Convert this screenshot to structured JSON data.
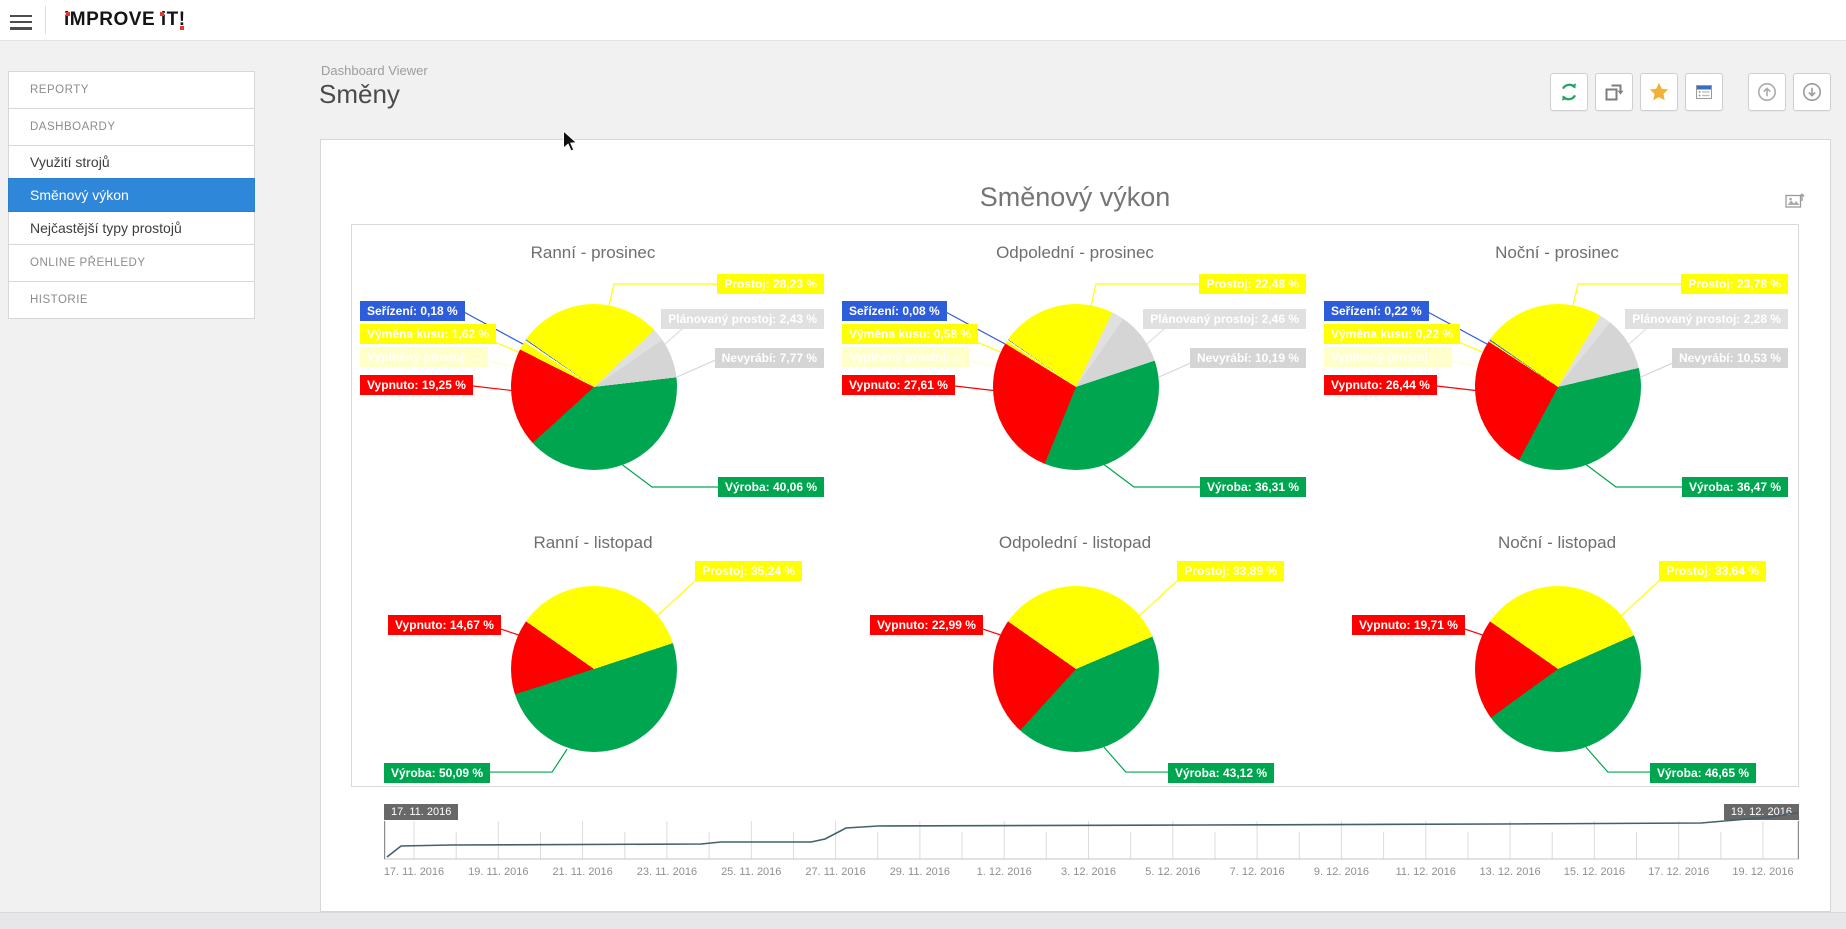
{
  "topbar": {
    "brand": "iMPROVE iT!"
  },
  "sidebar": {
    "items": [
      {
        "label": "REPORTY",
        "type": "section",
        "selected": false
      },
      {
        "label": "DASHBOARDY",
        "type": "section",
        "selected": false
      },
      {
        "label": "Využití strojů",
        "type": "item",
        "selected": false
      },
      {
        "label": "Směnový výkon",
        "type": "item",
        "selected": true
      },
      {
        "label": "Nejčastější typy prostojů",
        "type": "item",
        "selected": false
      },
      {
        "label": "ONLINE PŘEHLEDY",
        "type": "section",
        "selected": false
      },
      {
        "label": "HISTORIE",
        "type": "section",
        "selected": false
      }
    ]
  },
  "header": {
    "breadcrumb": "Dashboard Viewer",
    "title": "Směny"
  },
  "toolbar": {
    "buttons": [
      {
        "icon": "refresh",
        "color": "#23a566"
      },
      {
        "icon": "export",
        "color": "#7d7d7d"
      },
      {
        "icon": "favorite",
        "color": "#f2b138"
      },
      {
        "icon": "parameters",
        "color": "#3a70b8"
      },
      {
        "icon": "arrow-up-circle",
        "color": "#ababab"
      },
      {
        "icon": "arrow-down-circle",
        "color": "#9b9b9b"
      }
    ]
  },
  "dashboard": {
    "title": "Směnový výkon"
  },
  "colors": {
    "prostoj": "#ffff00",
    "planovany_prostoj": "#e0e0e0",
    "nevyrabi": "#d5d5d5",
    "vyroba": "#00a64f",
    "vypnuto": "#fe0000",
    "serizeni": "#2e5ddb",
    "vymena_kusu": "#ffff00",
    "vyplneny_prostoj": "#ffffca",
    "selected_nav": "#2e87d9",
    "timeline_line": "#43606b"
  },
  "chart_data": [
    {
      "type": "pie",
      "title": "Ranní - prosinec",
      "row": 1,
      "slices": [
        {
          "name": "Prostoj",
          "value": 28.23,
          "label": "Prostoj: 28,23 %",
          "color_key": "prostoj",
          "slot": "r1-prostoj"
        },
        {
          "name": "Plánovaný prostoj",
          "value": 2.43,
          "label": "Plánovaný prostoj: 2,43 %",
          "color_key": "planovany_prostoj",
          "slot": "r1-planovany"
        },
        {
          "name": "Nevyrábí",
          "value": 7.77,
          "label": "Nevyrábí: 7,77 %",
          "color_key": "nevyrabi",
          "slot": "r1-nevyrabi"
        },
        {
          "name": "Výroba",
          "value": 40.06,
          "label": "Výroba: 40,06 %",
          "color_key": "vyroba",
          "slot": "r1-vyroba"
        },
        {
          "name": "Vypnuto",
          "value": 19.25,
          "label": "Vypnuto: 19,25 %",
          "color_key": "vypnuto",
          "slot": "r1-vypnuto"
        },
        {
          "name": "Výměna kusu",
          "value": 1.62,
          "label": "Výměna kusu: 1,62 %",
          "color_key": "vymena_kusu",
          "slot": "r1-vymena"
        },
        {
          "name": "Vyplněný prostoj",
          "value": 0.46,
          "label": "Vyplněný prostoj: ...",
          "color_key": "vyplneny_prostoj",
          "slot": "r1-vyplneny"
        },
        {
          "name": "Seřízení",
          "value": 0.18,
          "label": "Seřízení: 0,18 %",
          "color_key": "serizeni",
          "slot": "r1-serizeni"
        }
      ]
    },
    {
      "type": "pie",
      "title": "Odpolední - prosinec",
      "row": 1,
      "slices": [
        {
          "name": "Prostoj",
          "value": 22.48,
          "label": "Prostoj: 22,48 %",
          "color_key": "prostoj",
          "slot": "r1-prostoj"
        },
        {
          "name": "Plánovaný prostoj",
          "value": 2.46,
          "label": "Plánovaný prostoj: 2,46 %",
          "color_key": "planovany_prostoj",
          "slot": "r1-planovany"
        },
        {
          "name": "Nevyrábí",
          "value": 10.19,
          "label": "Nevyrábí: 10,19 %",
          "color_key": "nevyrabi",
          "slot": "r1-nevyrabi"
        },
        {
          "name": "Výroba",
          "value": 36.31,
          "label": "Výroba: 36,31 %",
          "color_key": "vyroba",
          "slot": "r1-vyroba"
        },
        {
          "name": "Vypnuto",
          "value": 27.61,
          "label": "Vypnuto: 27,61 %",
          "color_key": "vypnuto",
          "slot": "r1-vypnuto"
        },
        {
          "name": "Výměna kusu",
          "value": 0.58,
          "label": "Výměna kusu: 0,58 %",
          "color_key": "vymena_kusu",
          "slot": "r1-vymena"
        },
        {
          "name": "Vyplněný prostoj",
          "value": 0.29,
          "label": "Vyplněný prostoj: ...",
          "color_key": "vyplneny_prostoj",
          "slot": "r1-vyplneny"
        },
        {
          "name": "Seřízení",
          "value": 0.08,
          "label": "Seřízení: 0,08 %",
          "color_key": "serizeni",
          "slot": "r1-serizeni"
        }
      ]
    },
    {
      "type": "pie",
      "title": "Noční - prosinec",
      "row": 1,
      "slices": [
        {
          "name": "Prostoj",
          "value": 23.78,
          "label": "Prostoj: 23,78 %",
          "color_key": "prostoj",
          "slot": "r1-prostoj"
        },
        {
          "name": "Plánovaný prostoj",
          "value": 2.28,
          "label": "Plánovaný prostoj: 2,28 %",
          "color_key": "planovany_prostoj",
          "slot": "r1-planovany"
        },
        {
          "name": "Nevyrábí",
          "value": 10.53,
          "label": "Nevyrábí: 10,53 %",
          "color_key": "nevyrabi",
          "slot": "r1-nevyrabi"
        },
        {
          "name": "Výroba",
          "value": 36.47,
          "label": "Výroba: 36,47 %",
          "color_key": "vyroba",
          "slot": "r1-vyroba"
        },
        {
          "name": "Vypnuto",
          "value": 26.44,
          "label": "Vypnuto: 26,44 %",
          "color_key": "vypnuto",
          "slot": "r1-vypnuto"
        },
        {
          "name": "Výměna kusu",
          "value": 0.22,
          "label": "Výměna kusu: 0,22 %",
          "color_key": "vymena_kusu",
          "slot": "r1-vymena"
        },
        {
          "name": "Vyplněný prostoj",
          "value": 0.06,
          "label": "Vyplněný prostoj: ...",
          "color_key": "vyplneny_prostoj",
          "slot": "r1-vyplneny"
        },
        {
          "name": "Seřízení",
          "value": 0.22,
          "label": "Seřízení: 0,22 %",
          "color_key": "serizeni",
          "slot": "r1-serizeni"
        }
      ]
    },
    {
      "type": "pie",
      "title": "Ranní - listopad",
      "row": 2,
      "slices": [
        {
          "name": "Prostoj",
          "value": 35.24,
          "label": "Prostoj: 35,24 %",
          "color_key": "prostoj",
          "slot": "r2-prostoj"
        },
        {
          "name": "Výroba",
          "value": 50.09,
          "label": "Výroba: 50,09 %",
          "color_key": "vyroba",
          "slot": "r2-vyroba-left"
        },
        {
          "name": "Vypnuto",
          "value": 14.67,
          "label": "Vypnuto: 14,67 %",
          "color_key": "vypnuto",
          "slot": "r2-vypnuto"
        }
      ]
    },
    {
      "type": "pie",
      "title": "Odpolední - listopad",
      "row": 2,
      "slices": [
        {
          "name": "Prostoj",
          "value": 33.89,
          "label": "Prostoj: 33,89 %",
          "color_key": "prostoj",
          "slot": "r2-prostoj"
        },
        {
          "name": "Výroba",
          "value": 43.12,
          "label": "Výroba: 43,12 %",
          "color_key": "vyroba",
          "slot": "r2-vyroba-right"
        },
        {
          "name": "Vypnuto",
          "value": 22.99,
          "label": "Vypnuto: 22,99 %",
          "color_key": "vypnuto",
          "slot": "r2-vypnuto"
        }
      ]
    },
    {
      "type": "pie",
      "title": "Noční - listopad",
      "row": 2,
      "slices": [
        {
          "name": "Prostoj",
          "value": 33.64,
          "label": "Prostoj: 33,64 %",
          "color_key": "prostoj",
          "slot": "r2-prostoj"
        },
        {
          "name": "Výroba",
          "value": 46.65,
          "label": "Výroba: 46,65 %",
          "color_key": "vyroba",
          "slot": "r2-vyroba-right"
        },
        {
          "name": "Vypnuto",
          "value": 19.71,
          "label": "Vypnuto: 19,71 %",
          "color_key": "vypnuto",
          "slot": "r2-vypnuto"
        }
      ]
    }
  ],
  "timeline": {
    "start_label": "17. 11. 2016",
    "end_label": "19. 12. 2016",
    "axis_labels": [
      "17. 11. 2016",
      "19. 11. 2016",
      "21. 11. 2016",
      "23. 11. 2016",
      "25. 11. 2016",
      "27. 11. 2016",
      "29. 11. 2016",
      "1. 12. 2016",
      "3. 12. 2016",
      "5. 12. 2016",
      "7. 12. 2016",
      "9. 12. 2016",
      "11. 12. 2016",
      "13. 12. 2016",
      "15. 12. 2016",
      "17. 12. 2016",
      "19. 12. 2016"
    ]
  }
}
